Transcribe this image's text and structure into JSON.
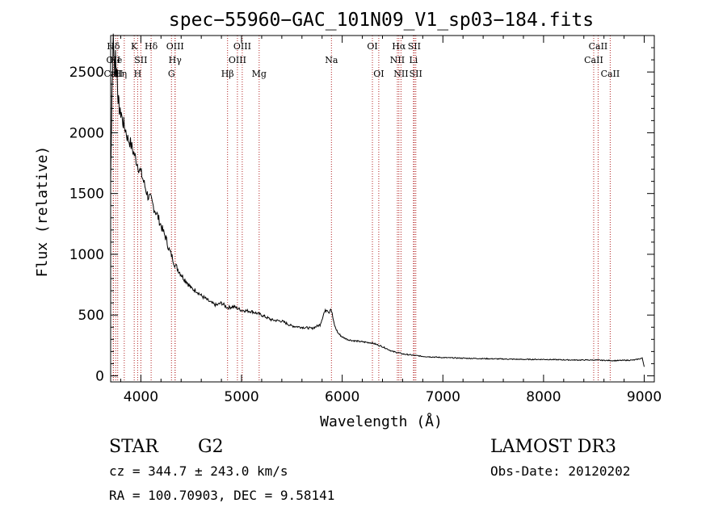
{
  "chart_data": {
    "type": "line",
    "title": "spec−55960−GAC_101N09_V1_sp03−184.fits",
    "xlabel": "Wavelength (Å)",
    "ylabel": "Flux (relative)",
    "xlim": [
      3700,
      9100
    ],
    "ylim": [
      -50,
      2800
    ],
    "x_ticks": [
      4000,
      5000,
      6000,
      7000,
      8000,
      9000
    ],
    "y_ticks": [
      0,
      500,
      1000,
      1500,
      2000,
      2500
    ],
    "grid": false,
    "series": [
      {
        "name": "Flux",
        "x": [
          3700,
          3705,
          3712,
          3720,
          3726,
          3733,
          3740,
          3748,
          3755,
          3762,
          3770,
          3778,
          3786,
          3795,
          3805,
          3815,
          3830,
          3850,
          3870,
          3890,
          3910,
          3935,
          3960,
          3985,
          4010,
          4040,
          4070,
          4100,
          4130,
          4160,
          4190,
          4220,
          4250,
          4280,
          4310,
          4330,
          4350,
          4380,
          4420,
          4460,
          4500,
          4550,
          4600,
          4650,
          4700,
          4750,
          4800,
          4860,
          4920,
          5000,
          5100,
          5200,
          5300,
          5400,
          5500,
          5600,
          5700,
          5780,
          5820,
          5850,
          5870,
          5885,
          5895,
          5905,
          5915,
          5930,
          5960,
          6000,
          6050,
          6100,
          6200,
          6300,
          6400,
          6500,
          6560,
          6600,
          6700,
          6800,
          6900,
          7000,
          7200,
          7500,
          7800,
          8000,
          8300,
          8500,
          8700,
          8900,
          8980,
          9000
        ],
        "y": [
          1600,
          1900,
          2300,
          2550,
          2800,
          2650,
          2450,
          2680,
          2500,
          2520,
          2350,
          2250,
          2200,
          2150,
          2180,
          2100,
          2070,
          2020,
          1950,
          1930,
          1880,
          1820,
          1760,
          1700,
          1650,
          1560,
          1480,
          1450,
          1380,
          1330,
          1260,
          1190,
          1130,
          1040,
          980,
          930,
          900,
          860,
          810,
          770,
          720,
          700,
          660,
          630,
          600,
          580,
          600,
          560,
          570,
          540,
          530,
          500,
          460,
          450,
          410,
          400,
          390,
          420,
          520,
          550,
          520,
          560,
          530,
          490,
          440,
          400,
          350,
          320,
          300,
          290,
          280,
          270,
          240,
          200,
          190,
          180,
          170,
          160,
          155,
          150,
          145,
          140,
          135,
          135,
          130,
          130,
          125,
          130,
          145,
          75
        ]
      }
    ],
    "lines": [
      {
        "label": "Hδ",
        "x": 3727,
        "row": 0
      },
      {
        "label": "OII",
        "x": 3727,
        "row": 1
      },
      {
        "label": "CaII",
        "x": 3727,
        "row": 2
      },
      {
        "label": "He",
        "x": 3750,
        "row": 1
      },
      {
        "label": "H",
        "x": 3770,
        "row": 2
      },
      {
        "label": "η",
        "x": 3835,
        "row": 2
      },
      {
        "label": "K",
        "x": 3934,
        "row": 0
      },
      {
        "label": "H",
        "x": 3968,
        "row": 2
      },
      {
        "label": "SII",
        "x": 4000,
        "row": 1
      },
      {
        "label": "Hδ",
        "x": 4102,
        "row": 0
      },
      {
        "label": "OIII",
        "x": 4340,
        "row": 0
      },
      {
        "label": "Hγ",
        "x": 4340,
        "row": 1
      },
      {
        "label": "G",
        "x": 4304,
        "row": 2
      },
      {
        "label": "Hβ",
        "x": 4861,
        "row": 2
      },
      {
        "label": "OIII",
        "x": 5007,
        "row": 0
      },
      {
        "label": "OIII",
        "x": 4959,
        "row": 1
      },
      {
        "label": "Mg",
        "x": 5175,
        "row": 2
      },
      {
        "label": "Na",
        "x": 5893,
        "row": 1
      },
      {
        "label": "OI",
        "x": 6300,
        "row": 0
      },
      {
        "label": "OI",
        "x": 6363,
        "row": 2
      },
      {
        "label": "Hα",
        "x": 6563,
        "row": 0
      },
      {
        "label": "SII",
        "x": 6716,
        "row": 0
      },
      {
        "label": "NII",
        "x": 6548,
        "row": 1
      },
      {
        "label": "Li",
        "x": 6708,
        "row": 1
      },
      {
        "label": "NII",
        "x": 6584,
        "row": 2
      },
      {
        "label": "SII",
        "x": 6731,
        "row": 2
      },
      {
        "label": "CaII",
        "x": 8542,
        "row": 0
      },
      {
        "label": "CaII",
        "x": 8498,
        "row": 1
      },
      {
        "label": "CaII",
        "x": 8662,
        "row": 2
      }
    ]
  },
  "info": {
    "class_label": "STAR",
    "subclass": "G2",
    "survey": "LAMOST  DR3",
    "cz": "cz = 344.7 ± 243.0 km/s",
    "obs_date": "Obs-Date: 20120202",
    "coords": "RA = 100.70903, DEC =    9.58141"
  },
  "colors": {
    "line_marker": "#b22222",
    "spectrum": "#000000"
  }
}
